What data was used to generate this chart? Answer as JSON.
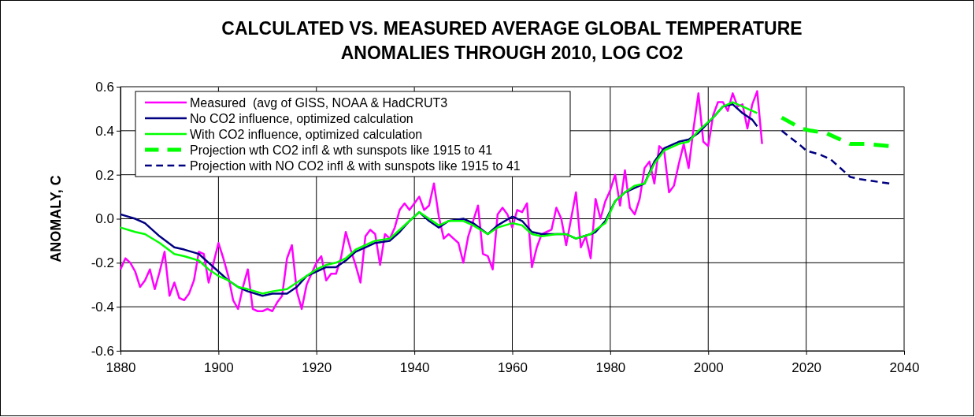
{
  "chart_data": {
    "type": "line",
    "title": "CALCULATED VS. MEASURED AVERAGE GLOBAL TEMPERATURE\nANOMALIES THROUGH 2010, LOG CO2",
    "ylabel": "ANOMALY, C",
    "x": [
      1880,
      1881,
      1882,
      1883,
      1884,
      1885,
      1886,
      1887,
      1888,
      1889,
      1890,
      1891,
      1892,
      1893,
      1894,
      1895,
      1896,
      1897,
      1898,
      1899,
      1900,
      1901,
      1902,
      1903,
      1904,
      1905,
      1906,
      1907,
      1908,
      1909,
      1910,
      1911,
      1912,
      1913,
      1914,
      1915,
      1916,
      1917,
      1918,
      1919,
      1920,
      1921,
      1922,
      1923,
      1924,
      1925,
      1926,
      1927,
      1928,
      1929,
      1930,
      1931,
      1932,
      1933,
      1934,
      1935,
      1936,
      1937,
      1938,
      1939,
      1940,
      1941,
      1942,
      1943,
      1944,
      1945,
      1946,
      1947,
      1948,
      1949,
      1950,
      1951,
      1952,
      1953,
      1954,
      1955,
      1956,
      1957,
      1958,
      1959,
      1960,
      1961,
      1962,
      1963,
      1964,
      1965,
      1966,
      1967,
      1968,
      1969,
      1970,
      1971,
      1972,
      1973,
      1974,
      1975,
      1976,
      1977,
      1978,
      1979,
      1980,
      1981,
      1982,
      1983,
      1984,
      1985,
      1986,
      1987,
      1988,
      1989,
      1990,
      1991,
      1992,
      1993,
      1994,
      1995,
      1996,
      1997,
      1998,
      1999,
      2000,
      2001,
      2002,
      2003,
      2004,
      2005,
      2006,
      2007,
      2008,
      2009,
      2010,
      2011
    ],
    "series": [
      {
        "name": "Measured  (avg of GISS, NOAA & HadCRUT3",
        "color": "#ff00ff",
        "line_style": "solid",
        "values": [
          -0.23,
          -0.18,
          -0.2,
          -0.24,
          -0.31,
          -0.28,
          -0.23,
          -0.32,
          -0.24,
          -0.15,
          -0.35,
          -0.29,
          -0.36,
          -0.37,
          -0.34,
          -0.28,
          -0.15,
          -0.16,
          -0.29,
          -0.2,
          -0.11,
          -0.18,
          -0.26,
          -0.37,
          -0.41,
          -0.31,
          -0.23,
          -0.41,
          -0.42,
          -0.42,
          -0.41,
          -0.42,
          -0.38,
          -0.35,
          -0.18,
          -0.12,
          -0.33,
          -0.41,
          -0.3,
          -0.25,
          -0.2,
          -0.17,
          -0.28,
          -0.25,
          -0.25,
          -0.18,
          -0.06,
          -0.14,
          -0.21,
          -0.29,
          -0.08,
          -0.05,
          -0.07,
          -0.21,
          -0.07,
          -0.09,
          -0.04,
          0.04,
          0.07,
          0.04,
          0.07,
          0.1,
          0.04,
          0.06,
          0.16,
          0.01,
          -0.09,
          -0.07,
          -0.09,
          -0.11,
          -0.2,
          -0.08,
          -0.01,
          0.06,
          -0.16,
          -0.17,
          -0.23,
          0.02,
          0.05,
          0.02,
          -0.04,
          0.04,
          0.03,
          0.07,
          -0.22,
          -0.13,
          -0.07,
          -0.06,
          -0.05,
          0.05,
          0,
          -0.12,
          0,
          0.12,
          -0.13,
          -0.08,
          -0.18,
          0.09,
          0,
          0.08,
          0.13,
          0.2,
          0.06,
          0.22,
          0.05,
          0.02,
          0.09,
          0.23,
          0.26,
          0.16,
          0.33,
          0.31,
          0.12,
          0.15,
          0.25,
          0.34,
          0.23,
          0.41,
          0.57,
          0.35,
          0.33,
          0.47,
          0.53,
          0.53,
          0.49,
          0.57,
          0.51,
          0.52,
          0.41,
          0.52,
          0.58,
          0.34
        ]
      },
      {
        "name": "No CO2 influence, optimized calculation",
        "color": "#000080",
        "line_style": "solid",
        "x": [
          1880,
          1883,
          1885,
          1888,
          1891,
          1893,
          1896,
          1898,
          1900,
          1902,
          1904,
          1906,
          1909,
          1911,
          1914,
          1916,
          1918,
          1920,
          1922,
          1924,
          1926,
          1928,
          1930,
          1932,
          1935,
          1937,
          1939,
          1941,
          1943,
          1945,
          1947,
          1950,
          1952,
          1955,
          1957,
          1960,
          1962,
          1964,
          1966,
          1969,
          1971,
          1973,
          1976,
          1977,
          1979,
          1981,
          1983,
          1985,
          1987,
          1989,
          1991,
          1994,
          1996,
          1998,
          2001,
          2003,
          2005,
          2007,
          2009,
          2010
        ],
        "values": [
          0.02,
          0,
          -0.02,
          -0.08,
          -0.13,
          -0.14,
          -0.16,
          -0.2,
          -0.24,
          -0.28,
          -0.31,
          -0.33,
          -0.35,
          -0.34,
          -0.34,
          -0.31,
          -0.26,
          -0.24,
          -0.22,
          -0.22,
          -0.19,
          -0.15,
          -0.13,
          -0.11,
          -0.1,
          -0.06,
          -0.01,
          0.03,
          -0.01,
          -0.04,
          -0.01,
          0,
          -0.02,
          -0.07,
          -0.03,
          0.01,
          -0.01,
          -0.06,
          -0.07,
          -0.07,
          -0.07,
          -0.09,
          -0.07,
          -0.06,
          -0.01,
          0.08,
          0.12,
          0.14,
          0.16,
          0.26,
          0.32,
          0.35,
          0.36,
          0.39,
          0.46,
          0.51,
          0.52,
          0.48,
          0.45,
          0.42
        ]
      },
      {
        "name": "With CO2 influence, optimized calculation",
        "color": "#00ff00",
        "line_style": "solid",
        "x": [
          1880,
          1883,
          1885,
          1888,
          1891,
          1893,
          1896,
          1898,
          1900,
          1902,
          1904,
          1906,
          1909,
          1911,
          1914,
          1916,
          1918,
          1920,
          1922,
          1924,
          1926,
          1928,
          1930,
          1932,
          1935,
          1937,
          1939,
          1941,
          1943,
          1945,
          1947,
          1950,
          1952,
          1955,
          1957,
          1960,
          1962,
          1964,
          1966,
          1969,
          1971,
          1973,
          1976,
          1977,
          1979,
          1981,
          1983,
          1985,
          1987,
          1989,
          1991,
          1994,
          1996,
          1998,
          2001,
          2003,
          2005,
          2007,
          2009,
          2010
        ],
        "values": [
          -0.04,
          -0.06,
          -0.07,
          -0.11,
          -0.16,
          -0.17,
          -0.19,
          -0.23,
          -0.26,
          -0.28,
          -0.31,
          -0.32,
          -0.34,
          -0.33,
          -0.32,
          -0.29,
          -0.26,
          -0.23,
          -0.21,
          -0.2,
          -0.18,
          -0.14,
          -0.12,
          -0.1,
          -0.09,
          -0.05,
          -0.01,
          0.03,
          0,
          -0.03,
          -0.01,
          -0.01,
          -0.03,
          -0.07,
          -0.04,
          -0.02,
          -0.03,
          -0.07,
          -0.08,
          -0.07,
          -0.07,
          -0.09,
          -0.07,
          -0.05,
          -0.02,
          0.08,
          0.12,
          0.15,
          0.16,
          0.25,
          0.31,
          0.34,
          0.35,
          0.4,
          0.46,
          0.51,
          0.53,
          0.51,
          0.49,
          0.48
        ]
      },
      {
        "name": "Projection wth CO2 infl & wth sunspots like 1915 to 41",
        "color": "#00ff00",
        "line_style": "dashed",
        "x": [
          2015,
          2019,
          2021,
          2024,
          2026,
          2028,
          2029,
          2032,
          2037
        ],
        "values": [
          0.46,
          0.41,
          0.4,
          0.39,
          0.37,
          0.35,
          0.34,
          0.34,
          0.33
        ]
      },
      {
        "name": "Projection with NO CO2 infl & with sunspots like 1915 to 41",
        "color": "#000080",
        "line_style": "dashed",
        "x": [
          2015,
          2019,
          2020,
          2023,
          2025,
          2027,
          2029,
          2031,
          2034,
          2037
        ],
        "values": [
          0.4,
          0.33,
          0.31,
          0.29,
          0.27,
          0.23,
          0.19,
          0.18,
          0.17,
          0.16
        ]
      }
    ],
    "xlim": [
      1880,
      2040
    ],
    "xticks": [
      1880,
      1900,
      1920,
      1940,
      1960,
      1980,
      2000,
      2020,
      2040
    ],
    "ylim": [
      -0.6,
      0.6
    ],
    "yticks": [
      -0.6,
      -0.4,
      -0.2,
      {
        "value": 0,
        "label": "0.0"
      },
      0.2,
      0.4,
      0.6
    ],
    "grid": true,
    "legend": "top left",
    "marker": "none"
  }
}
